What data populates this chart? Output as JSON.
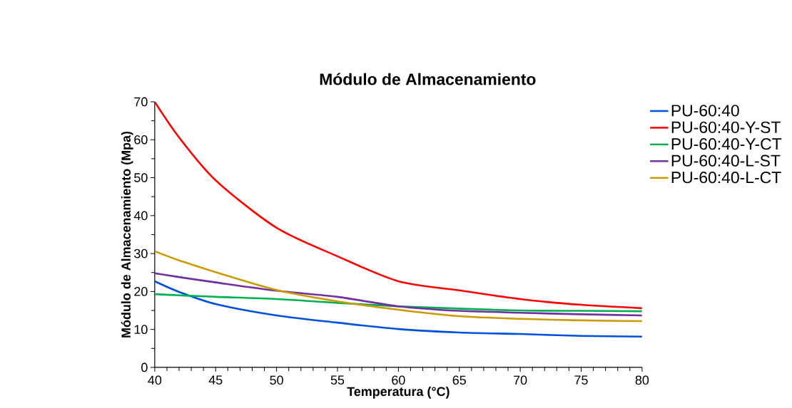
{
  "chart_data": {
    "type": "line",
    "title": "Módulo de Almacenamiento",
    "xlabel": "Temperatura (°C)",
    "ylabel": "Módulo de Almacenamiento (Mpa)",
    "x": [
      40,
      42,
      45,
      50,
      55,
      60,
      65,
      70,
      75,
      80
    ],
    "series": [
      {
        "name": "PU-60:40",
        "color": "#0050e0",
        "values": [
          22.7,
          19.9,
          16.7,
          13.7,
          11.8,
          10.1,
          9.2,
          8.8,
          8.3,
          8.1
        ]
      },
      {
        "name": "PU-60:40-Y-ST",
        "color": "#ff0000",
        "values": [
          70,
          60.6,
          49.3,
          36.8,
          29.3,
          22.7,
          20.3,
          18.0,
          16.5,
          15.6
        ]
      },
      {
        "name": "PU-60:40-Y-CT",
        "color": "#00b050",
        "values": [
          19.3,
          19.0,
          18.6,
          18.0,
          17.0,
          16.1,
          15.5,
          15.0,
          14.9,
          14.8
        ]
      },
      {
        "name": "PU-60:40-L-ST",
        "color": "#7030a0",
        "values": [
          24.8,
          23.8,
          22.4,
          20.2,
          18.6,
          16.1,
          14.9,
          14.4,
          14.0,
          13.7
        ]
      },
      {
        "name": "PU-60:40-L-CT",
        "color": "#cc9900",
        "values": [
          30.6,
          28.2,
          25.1,
          20.4,
          17.4,
          15.2,
          13.5,
          12.8,
          12.4,
          12.2
        ]
      }
    ],
    "xlim": [
      40,
      80
    ],
    "xticks": [
      40,
      45,
      50,
      55,
      60,
      65,
      70,
      75,
      80
    ],
    "ylim": [
      0,
      70
    ],
    "yticks": [
      0,
      10,
      20,
      30,
      40,
      50,
      60,
      70
    ],
    "legend": "top right",
    "grid": false,
    "marker": "none",
    "line_style": "solid"
  }
}
